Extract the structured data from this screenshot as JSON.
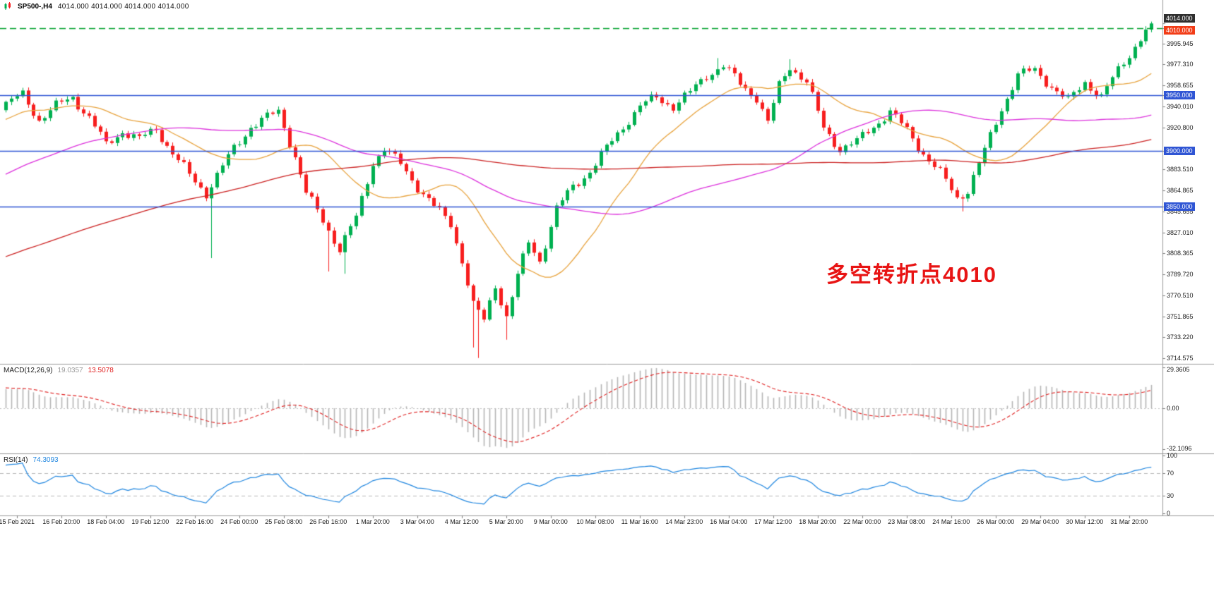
{
  "header": {
    "symbol_timeframe": "SP500-,H4",
    "ohlc_text": "4014.000 4014.000 4014.000 4014.000"
  },
  "annotation": {
    "text": "多空转折点4010",
    "color": "#e81414"
  },
  "indicators": {
    "macd": {
      "label": "MACD(12,26,9)",
      "value_main": "19.0357",
      "value_signal": "13.5078",
      "axis_labels": [
        {
          "text": "29.3605",
          "pos": "top"
        },
        {
          "text": "0.00",
          "pos": "zero"
        },
        {
          "text": "-32.1096",
          "pos": "bottom"
        }
      ],
      "histogram_color": "#b5b5b5",
      "signal_color": "#e02020",
      "fast": 12,
      "slow": 26,
      "signal": 9
    },
    "rsi": {
      "label": "RSI(14)",
      "value": "74.3093",
      "period": 14,
      "line_color": "#1f86e0",
      "levels": [
        70,
        30
      ],
      "axis_labels": [
        "100",
        "70",
        "30",
        "0"
      ]
    }
  },
  "chart_data": {
    "type": "candlestick",
    "symbol": "SP500-",
    "timeframe": "H4",
    "last_ohlc": {
      "open": 4014.0,
      "high": 4014.0,
      "low": 4014.0,
      "close": 4014.0
    },
    "up_color": "#00b050",
    "down_color": "#f71e1e",
    "price_axis": {
      "ylim": [
        3710,
        4035
      ],
      "labels": [
        "3995.945",
        "3977.310",
        "3958.655",
        "3940.010",
        "3920.800",
        "3883.510",
        "3864.865",
        "3845.655",
        "3827.010",
        "3808.365",
        "3789.720",
        "3770.510",
        "3751.865",
        "3733.220",
        "3714.575"
      ],
      "badges": [
        {
          "text": "4014.000",
          "value": 4014.0,
          "bg": "#2f2f2f",
          "dy": -7,
          "name": "current-price-badge"
        },
        {
          "text": "4010.000",
          "value": 4010.0,
          "bg": "#f23c17",
          "dy": 3,
          "name": "hline-badge-4010"
        },
        {
          "text": "3950.000",
          "value": 3950.0,
          "bg": "#2f55d4",
          "dy": 0,
          "name": "hline-badge-3950"
        },
        {
          "text": "3900.000",
          "value": 3900.0,
          "bg": "#2f55d4",
          "dy": 0,
          "name": "hline-badge-3900"
        },
        {
          "text": "3850.000",
          "value": 3850.0,
          "bg": "#2f55d4",
          "dy": 0,
          "name": "hline-badge-3850"
        }
      ]
    },
    "hlines": [
      {
        "value": 4010.0,
        "color": "#00a12c",
        "style": "dash",
        "width": 1.5
      },
      {
        "value": 3950.0,
        "color": "#2f55d4",
        "style": "solid",
        "width": 1.4
      },
      {
        "value": 3900.0,
        "color": "#2f55d4",
        "style": "solid",
        "width": 1.4
      },
      {
        "value": 3850.0,
        "color": "#2f55d4",
        "style": "solid",
        "width": 1.4
      }
    ],
    "time_labels": [
      "15 Feb 2021",
      "16 Feb 20:00",
      "18 Feb 04:00",
      "19 Feb 12:00",
      "22 Feb 16:00",
      "24 Feb 00:00",
      "25 Feb 08:00",
      "26 Feb 16:00",
      "1 Mar 20:00",
      "3 Mar 04:00",
      "4 Mar 12:00",
      "5 Mar 20:00",
      "9 Mar 00:00",
      "10 Mar 08:00",
      "11 Mar 16:00",
      "14 Mar 23:00",
      "16 Mar 04:00",
      "17 Mar 12:00",
      "18 Mar 20:00",
      "22 Mar 00:00",
      "23 Mar 08:00",
      "24 Mar 16:00",
      "26 Mar 00:00",
      "29 Mar 04:00",
      "30 Mar 12:00",
      "31 Mar 20:00"
    ],
    "first_label_bar": 2,
    "label_every_bars": 8,
    "moving_averages": [
      {
        "period": 18,
        "color": "#e8a33d"
      },
      {
        "period": 60,
        "color": "#dd33dd"
      },
      {
        "period": 130,
        "color": "#cc2222"
      }
    ],
    "synth": {
      "start_index": -130,
      "end_index": 206,
      "clamp_max": 4014.0,
      "clamp_min": 3714.575,
      "a1": 3.2,
      "f1": 0.83,
      "a2": 2.1,
      "f2": 2.17,
      "p2": 1.1,
      "s0": 1.1,
      "s1": 1.9,
      "sf": 1.31,
      "sg": 0.97,
      "keypoints": [
        [
          -130,
          3690
        ],
        [
          -100,
          3730
        ],
        [
          -70,
          3770
        ],
        [
          -45,
          3845
        ],
        [
          -25,
          3890
        ],
        [
          -10,
          3928
        ],
        [
          0,
          3942
        ],
        [
          3,
          3950
        ],
        [
          6,
          3928
        ],
        [
          9,
          3940
        ],
        [
          12,
          3948
        ],
        [
          15,
          3930
        ],
        [
          18,
          3905
        ],
        [
          21,
          3918
        ],
        [
          24,
          3910
        ],
        [
          27,
          3920
        ],
        [
          30,
          3898
        ],
        [
          33,
          3878
        ],
        [
          36,
          3862
        ],
        [
          38,
          3878
        ],
        [
          41,
          3902
        ],
        [
          44,
          3922
        ],
        [
          47,
          3930
        ],
        [
          49,
          3935
        ],
        [
          52,
          3895
        ],
        [
          54,
          3862
        ],
        [
          57,
          3838
        ],
        [
          60,
          3812
        ],
        [
          63,
          3840
        ],
        [
          66,
          3890
        ],
        [
          68,
          3902
        ],
        [
          71,
          3888
        ],
        [
          74,
          3868
        ],
        [
          77,
          3850
        ],
        [
          80,
          3835
        ],
        [
          82,
          3802
        ],
        [
          84,
          3762
        ],
        [
          86,
          3748
        ],
        [
          88,
          3780
        ],
        [
          90,
          3752
        ],
        [
          92,
          3788
        ],
        [
          94,
          3818
        ],
        [
          96,
          3802
        ],
        [
          99,
          3848
        ],
        [
          102,
          3868
        ],
        [
          105,
          3882
        ],
        [
          108,
          3902
        ],
        [
          111,
          3922
        ],
        [
          114,
          3940
        ],
        [
          117,
          3948
        ],
        [
          120,
          3940
        ],
        [
          123,
          3952
        ],
        [
          126,
          3968
        ],
        [
          129,
          3976
        ],
        [
          132,
          3960
        ],
        [
          135,
          3948
        ],
        [
          137,
          3925
        ],
        [
          139,
          3958
        ],
        [
          141,
          3976
        ],
        [
          144,
          3962
        ],
        [
          147,
          3920
        ],
        [
          150,
          3902
        ],
        [
          153,
          3908
        ],
        [
          156,
          3922
        ],
        [
          159,
          3935
        ],
        [
          162,
          3918
        ],
        [
          165,
          3898
        ],
        [
          168,
          3880
        ],
        [
          171,
          3858
        ],
        [
          173,
          3865
        ],
        [
          176,
          3900
        ],
        [
          179,
          3938
        ],
        [
          182,
          3968
        ],
        [
          185,
          3972
        ],
        [
          188,
          3958
        ],
        [
          191,
          3944
        ],
        [
          194,
          3962
        ],
        [
          197,
          3948
        ],
        [
          200,
          3972
        ],
        [
          203,
          3994
        ],
        [
          206,
          4014
        ]
      ],
      "wicks": [
        {
          "i": 37,
          "low": 3804
        },
        {
          "i": 58,
          "low": 3792
        },
        {
          "i": 61,
          "low": 3790
        },
        {
          "i": 84,
          "low": 3724
        },
        {
          "i": 85,
          "low": 3714.6
        },
        {
          "i": 90,
          "low": 3731
        },
        {
          "i": 128,
          "high": 3983
        },
        {
          "i": 141,
          "high": 3982
        },
        {
          "i": 172,
          "low": 3845.8
        },
        {
          "i": 206,
          "high": 4014.3
        }
      ]
    }
  }
}
